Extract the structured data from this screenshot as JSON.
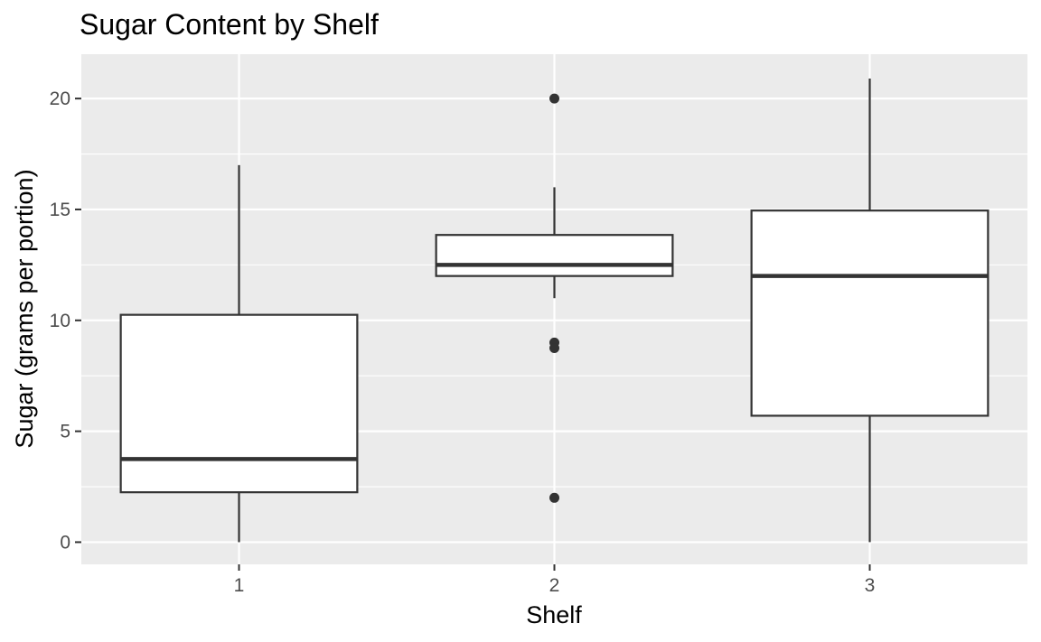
{
  "chart_data": {
    "type": "boxplot",
    "title": "Sugar Content by Shelf",
    "xlabel": "Shelf",
    "ylabel": "Sugar (grams per portion)",
    "categories": [
      "1",
      "2",
      "3"
    ],
    "ylim": [
      -1,
      22
    ],
    "yticks": [
      0,
      5,
      10,
      15,
      20
    ],
    "yticks_minor": [
      2.5,
      7.5,
      12.5,
      17.5
    ],
    "grid": true,
    "legend": "none",
    "boxes": [
      {
        "category": "1",
        "min": 0,
        "q1": 2.25,
        "median": 3.75,
        "q3": 10.25,
        "max": 17,
        "outliers": []
      },
      {
        "category": "2",
        "min": 11,
        "q1": 12,
        "median": 12.5,
        "q3": 13.85,
        "max": 16,
        "outliers": [
          20,
          9,
          8.75,
          2
        ]
      },
      {
        "category": "3",
        "min": 0,
        "q1": 5.7,
        "median": 12,
        "q3": 14.95,
        "max": 20.9,
        "outliers": []
      }
    ],
    "colors": {
      "panel": "#ebebeb",
      "grid": "#ffffff",
      "box_fill": "#ffffff",
      "box_line": "#333333"
    }
  }
}
